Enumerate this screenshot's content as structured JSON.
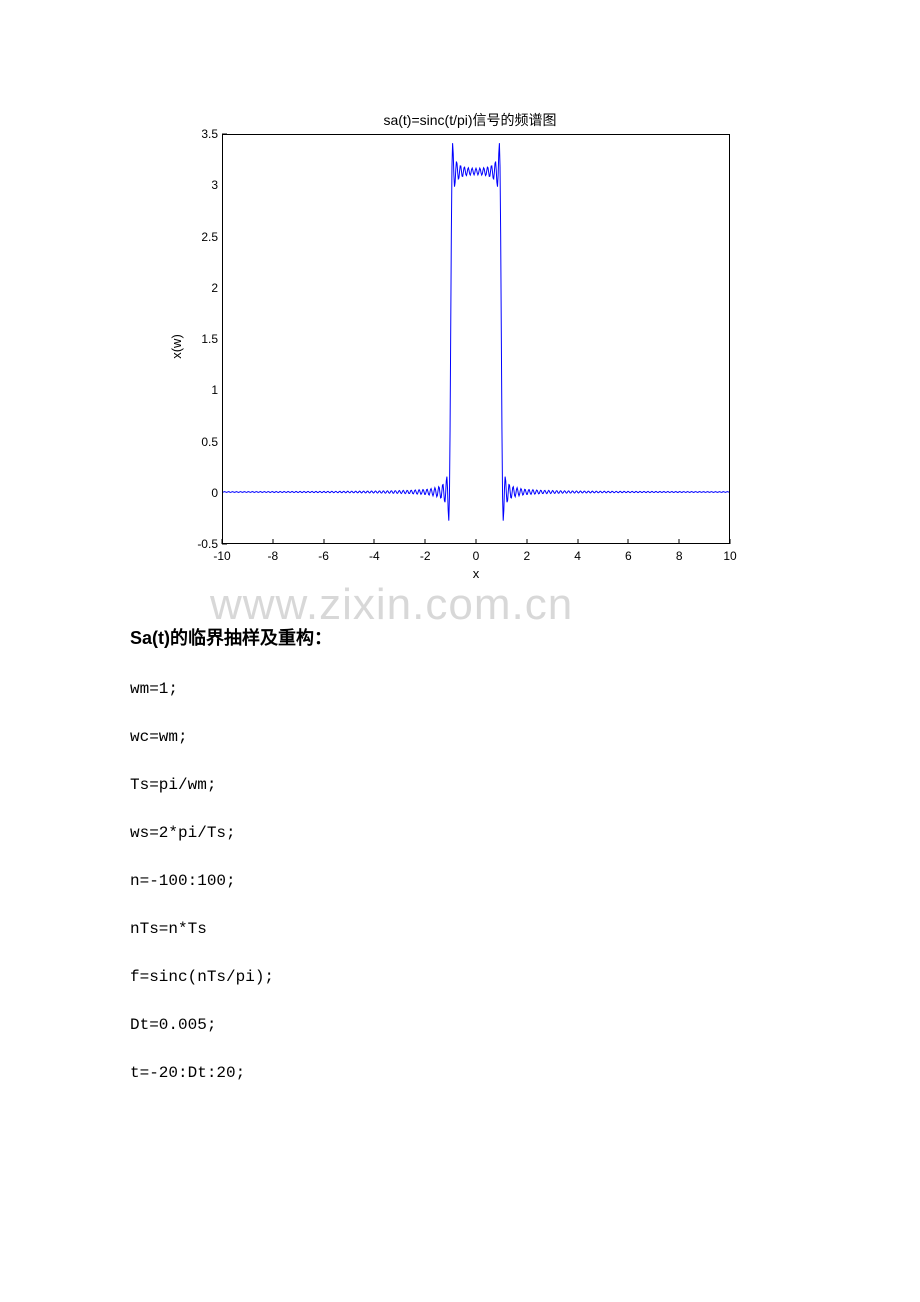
{
  "chart": {
    "type": "line",
    "title": "sa(t)=sinc(t/pi)信号的频谱图",
    "title_fontsize": 14,
    "xlabel": "x",
    "ylabel": "x(w)",
    "label_fontsize": 13,
    "xlim": [
      -10,
      10
    ],
    "ylim": [
      -0.5,
      3.5
    ],
    "xtick_step": 2,
    "ytick_step": 0.5,
    "xticks": [
      -10,
      -8,
      -6,
      -4,
      -2,
      0,
      2,
      4,
      6,
      8,
      10
    ],
    "yticks": [
      -0.5,
      0,
      0.5,
      1,
      1.5,
      2,
      2.5,
      3,
      3.5
    ],
    "line_color": "#0000ff",
    "line_width": 1,
    "background_color": "#ffffff",
    "border_color": "#000000",
    "tick_fontsize": 12,
    "tick_color": "#000000"
  },
  "watermark": {
    "text": "www.zixin.com.cn",
    "color": "#d8d8d8",
    "fontsize": 44
  },
  "heading": {
    "text": "Sa(t)的临界抽样及重构："
  },
  "code": {
    "lines": [
      "wm=1;",
      "wc=wm;",
      "Ts=pi/wm;",
      "ws=2*pi/Ts;",
      "n=-100:100;",
      "nTs=n*Ts",
      "f=sinc(nTs/pi);",
      "Dt=0.005;",
      "t=-20:Dt:20;"
    ]
  }
}
